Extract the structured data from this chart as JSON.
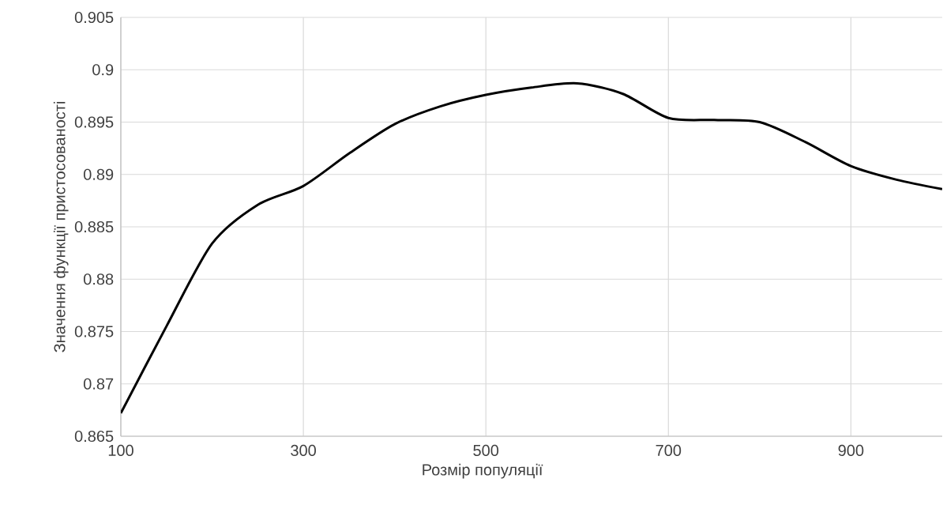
{
  "chart_data": {
    "type": "line",
    "xlabel": "Розмір популяції",
    "ylabel": "Значення функції пристосованості",
    "x": [
      100,
      150,
      200,
      250,
      300,
      350,
      400,
      450,
      500,
      550,
      600,
      650,
      700,
      750,
      800,
      850,
      900,
      950,
      1000
    ],
    "series": [
      {
        "color": "#000000",
        "values": [
          0.8672,
          0.8755,
          0.8834,
          0.8871,
          0.8889,
          0.892,
          0.8948,
          0.8965,
          0.8976,
          0.8983,
          0.8987,
          0.8977,
          0.8954,
          0.8952,
          0.895,
          0.8931,
          0.8908,
          0.8895,
          0.8886
        ]
      }
    ],
    "xlim": [
      100,
      1000
    ],
    "ylim": [
      0.865,
      0.905
    ],
    "xticks": [
      100,
      300,
      500,
      700,
      900
    ],
    "yticks": [
      0.865,
      0.87,
      0.875,
      0.88,
      0.885,
      0.89,
      0.895,
      0.9,
      0.905
    ],
    "grid": true
  }
}
